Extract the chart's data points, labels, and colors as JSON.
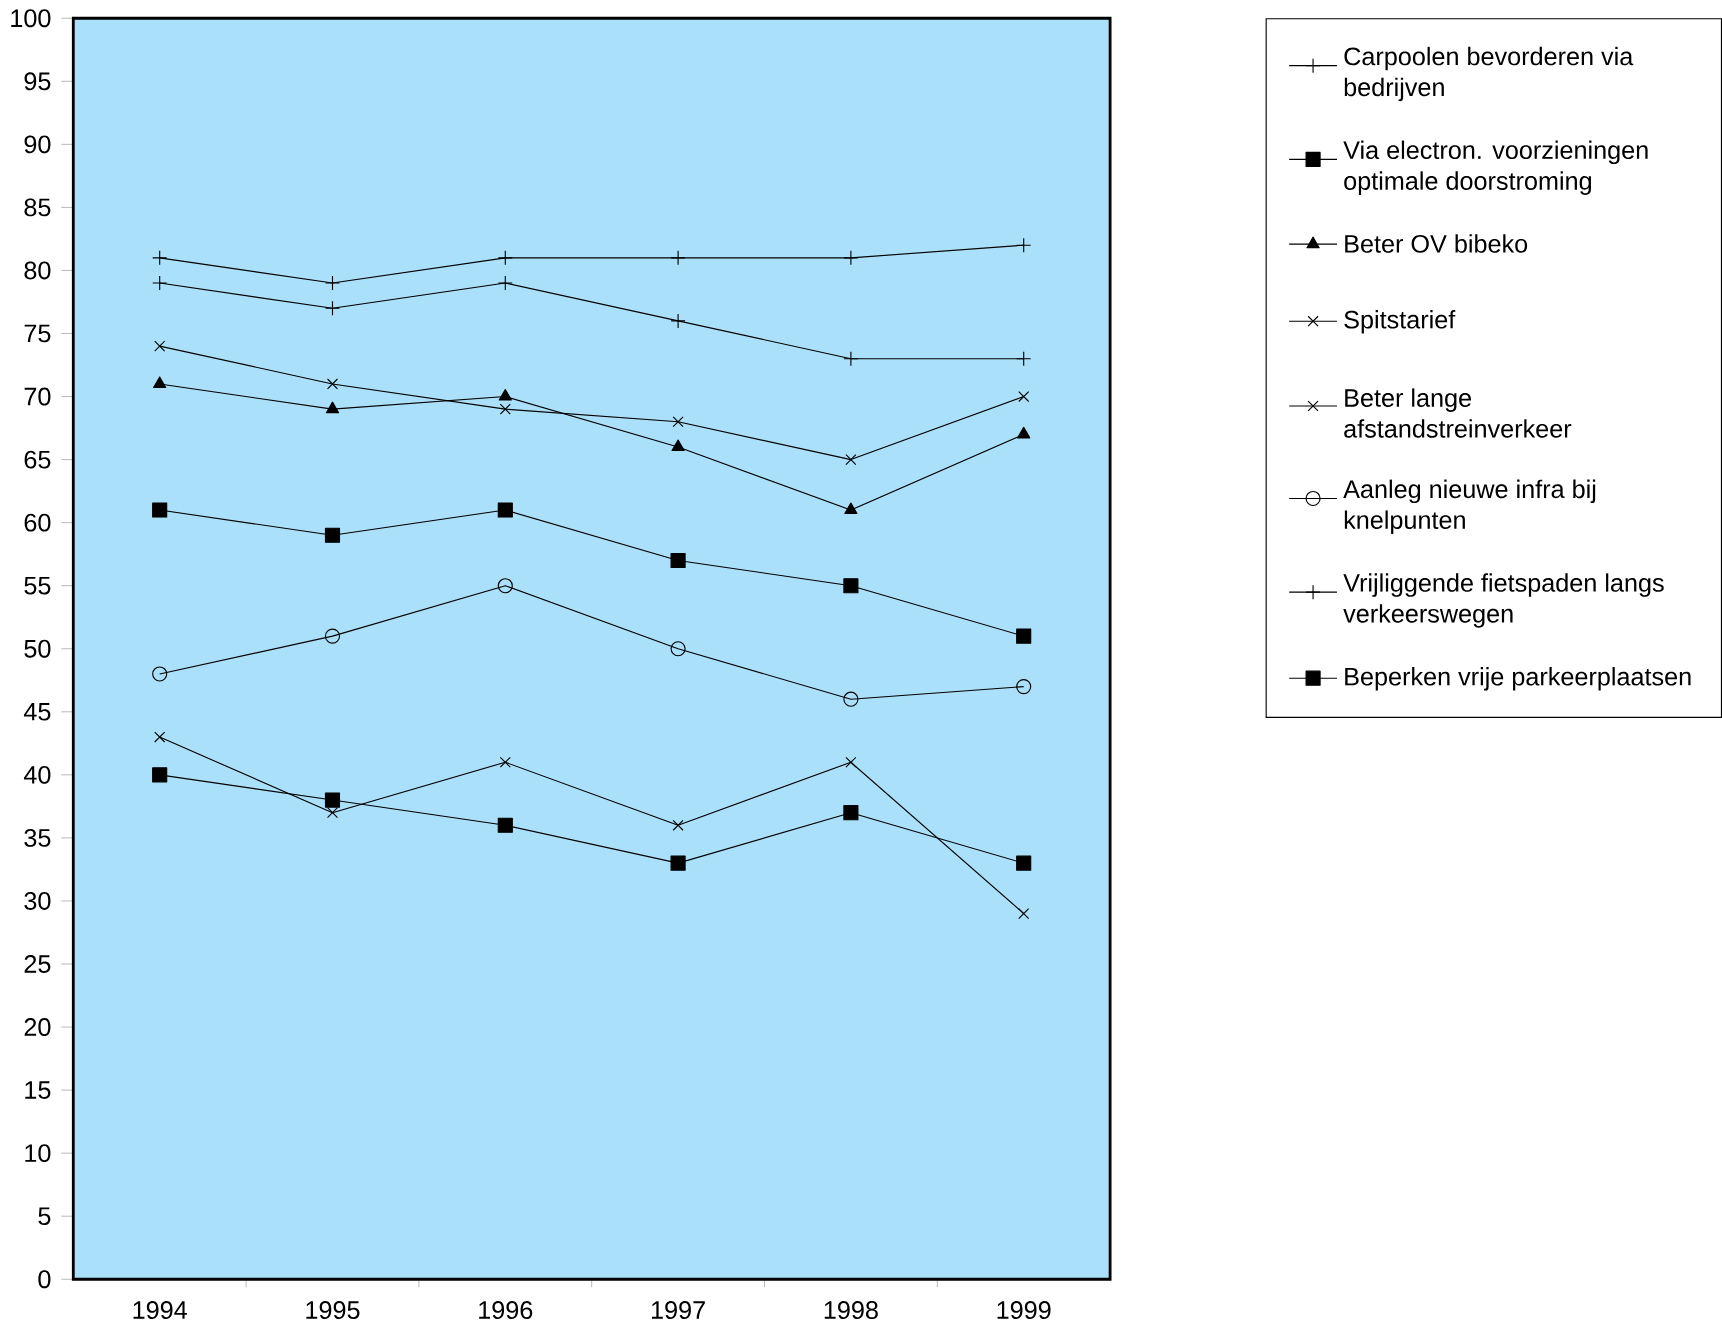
{
  "chart_data": {
    "type": "line",
    "categories": [
      "1994",
      "1995",
      "1996",
      "1997",
      "1998",
      "1999"
    ],
    "ylim": [
      0,
      100
    ],
    "yticks": [
      0,
      5,
      10,
      15,
      20,
      25,
      30,
      35,
      40,
      45,
      50,
      55,
      60,
      65,
      70,
      75,
      80,
      85,
      90,
      95,
      100
    ],
    "legend": "right",
    "grid": false,
    "series": [
      {
        "name": "Carpoolen bevorderen via bedrijven",
        "color": "#000000",
        "marker": "plus",
        "values": [
          81,
          79,
          81,
          81,
          81,
          82
        ]
      },
      {
        "name": "Via electron. voorzieningen optimale doorstroming",
        "color": "#000000",
        "marker": "square",
        "values": [
          61,
          59,
          61,
          57,
          55,
          51
        ]
      },
      {
        "name": "Beter OV bibeko",
        "color": "#000000",
        "marker": "triangle",
        "values": [
          71,
          69,
          70,
          66,
          61,
          67
        ]
      },
      {
        "name": "Spitstarief",
        "color": "#000000",
        "marker": "cross",
        "values": [
          43,
          37,
          41,
          36,
          41,
          29
        ]
      },
      {
        "name": "Beter lange afstandstreinverkeer",
        "color": "#000000",
        "marker": "cross",
        "values": [
          74,
          71,
          69,
          68,
          65,
          70
        ]
      },
      {
        "name": "Aanleg nieuwe infra bij knelpunten",
        "color": "#000000",
        "marker": "circle",
        "values": [
          48,
          51,
          55,
          50,
          46,
          47
        ]
      },
      {
        "name": "Vrijliggende fietspaden langs verkeerswegen",
        "color": "#000000",
        "marker": "plus",
        "values": [
          79,
          77,
          79,
          76,
          73,
          73
        ]
      },
      {
        "name": "Beperken vrije parkeerplaatsen",
        "color": "#000000",
        "marker": "square",
        "values": [
          40,
          38,
          36,
          33,
          37,
          33
        ]
      }
    ]
  }
}
